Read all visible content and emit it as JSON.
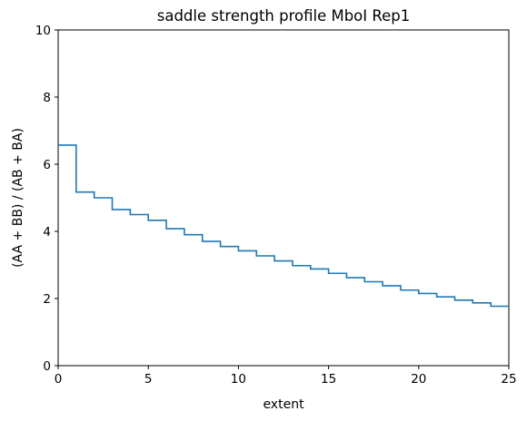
{
  "chart_data": {
    "type": "line",
    "drawstyle": "steps-post",
    "title": "saddle strength profile MboI Rep1",
    "xlabel": "extent",
    "ylabel": "(AA + BB) / (AB + BA)",
    "xlim": [
      0,
      25
    ],
    "ylim": [
      0,
      10
    ],
    "xticks": [
      0,
      5,
      10,
      15,
      20,
      25
    ],
    "yticks": [
      0,
      2,
      4,
      6,
      8,
      10
    ],
    "grid": false,
    "series": [
      {
        "color": "#1f77b4",
        "x": [
          0,
          1,
          2,
          3,
          4,
          5,
          6,
          7,
          8,
          9,
          10,
          11,
          12,
          13,
          14,
          15,
          16,
          17,
          18,
          19,
          20,
          21,
          22,
          23,
          24,
          25
        ],
        "y": [
          6.57,
          5.17,
          5.0,
          4.65,
          4.5,
          4.33,
          4.08,
          3.9,
          3.7,
          3.55,
          3.42,
          3.27,
          3.12,
          2.98,
          2.88,
          2.75,
          2.62,
          2.5,
          2.38,
          2.25,
          2.15,
          2.05,
          1.95,
          1.87,
          1.77,
          1.77
        ]
      }
    ]
  }
}
